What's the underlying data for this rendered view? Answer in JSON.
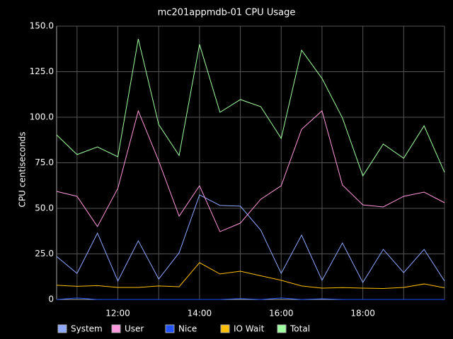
{
  "chart_data": {
    "type": "line",
    "title": "mc201appmdb-01 CPU Usage",
    "y_label": "CPU centiseconds",
    "categories": [
      null,
      null,
      null,
      "12:00",
      null,
      null,
      null,
      "14:00",
      null,
      null,
      null,
      "16:00",
      null,
      null,
      null,
      "18:00",
      null,
      null,
      null,
      null
    ],
    "ylim": [
      0,
      150
    ],
    "yticks": [
      0,
      {
        "value": 25,
        "label": "25.0"
      },
      {
        "value": 50,
        "label": "50.0"
      },
      {
        "value": 75,
        "label": "75.0"
      },
      {
        "value": 100,
        "label": "100.0"
      },
      {
        "value": 125,
        "label": "125.0"
      },
      {
        "value": 150,
        "label": "150.0"
      }
    ],
    "grid": true,
    "legend": "bottom",
    "series": [
      {
        "name": "System",
        "color": "#8fa8ff",
        "values": [
          23.6,
          14.3,
          36.4,
          10.1,
          32.2,
          11.2,
          25.6,
          57.4,
          51.6,
          51.2,
          38,
          14.3,
          35.3,
          10.5,
          31,
          9.3,
          27.5,
          14.7,
          27.5,
          10.1
        ]
      },
      {
        "name": "User",
        "color": "#ff99dd",
        "values": [
          59.3,
          56.6,
          40,
          61,
          103.5,
          76,
          45.7,
          62.4,
          37.2,
          41.9,
          55,
          62.4,
          93.4,
          103.5,
          62.8,
          51.9,
          50.8,
          56.6,
          58.9,
          53.1
        ]
      },
      {
        "name": "Nice",
        "color": "#2255ff",
        "values": [
          0,
          0.8,
          0,
          0,
          0,
          0,
          0,
          0,
          0,
          0.5,
          0,
          0.8,
          0,
          0.4,
          0,
          0,
          0,
          0,
          0,
          0
        ]
      },
      {
        "name": "IO Wait",
        "color": "#ffc000",
        "values": [
          7.8,
          7.2,
          7.6,
          6.6,
          6.6,
          7.4,
          7,
          20.2,
          14,
          15.5,
          13,
          10.5,
          7.4,
          6.2,
          6.5,
          6.2,
          6,
          6.6,
          8.5,
          6.4
        ]
      },
      {
        "name": "Total",
        "color": "#a0ffa0",
        "values": [
          90.3,
          79.5,
          83.7,
          78.3,
          143,
          96,
          79,
          140,
          102.7,
          109.7,
          105.8,
          88.4,
          136.8,
          121.3,
          99.6,
          67.8,
          85.3,
          77.5,
          95.3,
          69.8
        ]
      }
    ]
  }
}
